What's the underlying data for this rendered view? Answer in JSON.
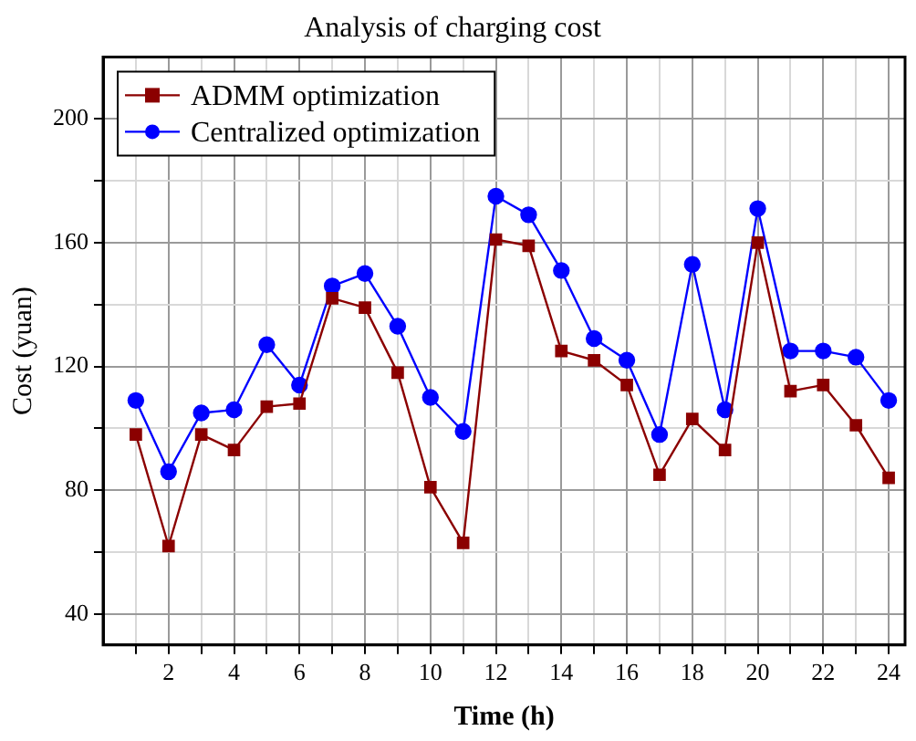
{
  "chart_data": {
    "type": "line",
    "title": "Analysis of charging cost",
    "xlabel": "Time (h)",
    "ylabel": "Cost (yuan)",
    "x": [
      1,
      2,
      3,
      4,
      5,
      6,
      7,
      8,
      9,
      10,
      11,
      12,
      13,
      14,
      15,
      16,
      17,
      18,
      19,
      20,
      21,
      22,
      23,
      24
    ],
    "series": [
      {
        "name": "ADMM optimization",
        "color": "#8b0000",
        "marker": "square",
        "values": [
          98,
          62,
          98,
          93,
          107,
          108,
          142,
          139,
          118,
          81,
          63,
          161,
          159,
          125,
          122,
          114,
          85,
          103,
          93,
          160,
          112,
          114,
          101,
          84
        ]
      },
      {
        "name": "Centralized optimization",
        "color": "#0000ff",
        "marker": "circle",
        "values": [
          109,
          86,
          105,
          106,
          127,
          114,
          146,
          150,
          133,
          110,
          99,
          175,
          169,
          151,
          129,
          122,
          98,
          153,
          106,
          171,
          125,
          125,
          123,
          109
        ]
      }
    ],
    "xlim": [
      0,
      24.5
    ],
    "ylim": [
      30,
      220
    ],
    "xticks": [
      {
        "value": 1,
        "label": null
      },
      2,
      {
        "value": 3,
        "label": null
      },
      4,
      {
        "value": 5,
        "label": null
      },
      6,
      {
        "value": 7,
        "label": null
      },
      8,
      {
        "value": 9,
        "label": null
      },
      10,
      {
        "value": 11,
        "label": null
      },
      12,
      {
        "value": 13,
        "label": null
      },
      14,
      {
        "value": 15,
        "label": null
      },
      16,
      {
        "value": 17,
        "label": null
      },
      18,
      {
        "value": 19,
        "label": null
      },
      20,
      {
        "value": 21,
        "label": null
      },
      22,
      {
        "value": 23,
        "label": null
      },
      24
    ],
    "yticks": [
      40,
      {
        "value": 60,
        "label": null
      },
      80,
      {
        "value": 100,
        "label": null
      },
      120,
      {
        "value": 140,
        "label": null
      },
      160,
      {
        "value": 180,
        "label": null
      },
      200
    ],
    "grid": true,
    "legend": "top left",
    "line_style": "solid"
  }
}
